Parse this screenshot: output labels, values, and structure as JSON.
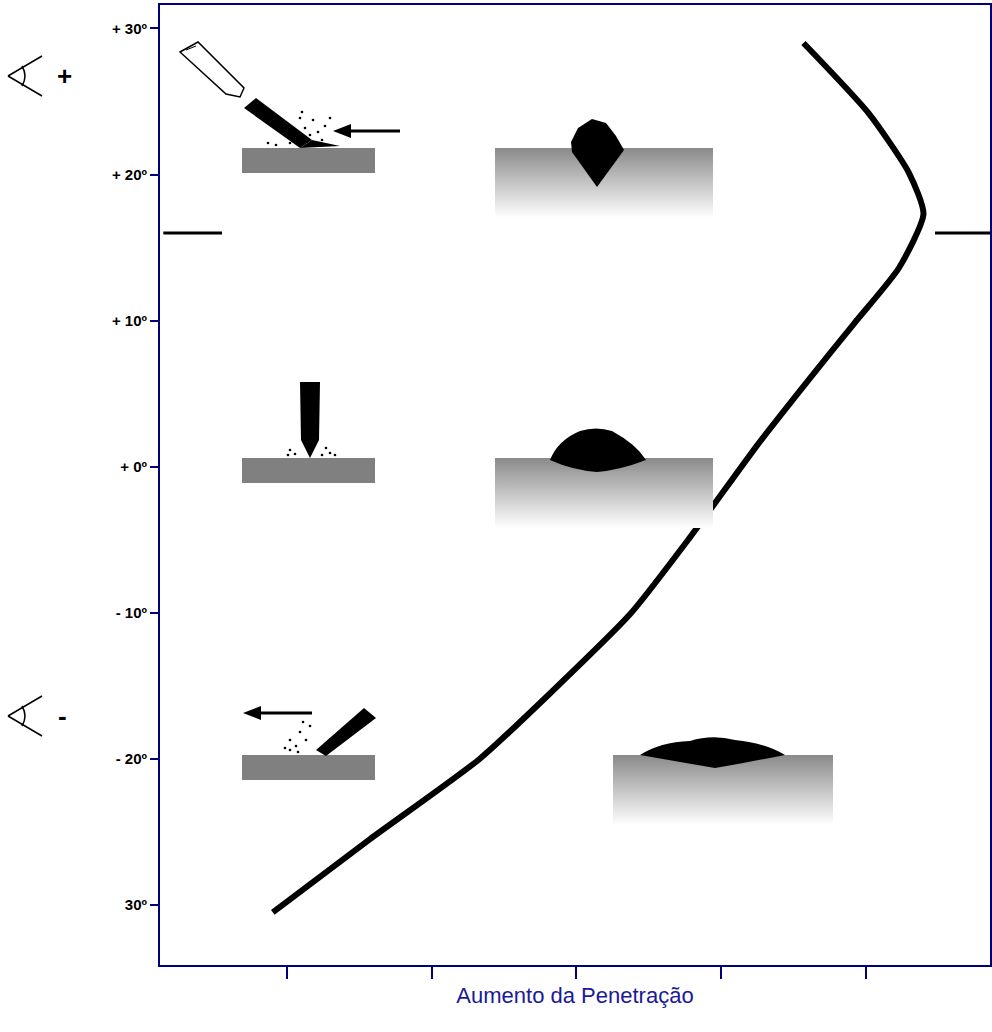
{
  "chart_data": {
    "type": "line",
    "x_label": "Aumento da Penetração",
    "x": [
      0.9,
      1.57,
      2.33,
      2.85,
      3.37,
      3.78,
      4.26,
      4.61,
      4.92,
      5.23,
      5.4,
      5.3,
      5.02,
      4.57
    ],
    "values": [
      -30.5,
      -25.5,
      -20.0,
      -15.2,
      -10.1,
      -4.9,
      1.6,
      6.0,
      9.8,
      13.6,
      17.3,
      20.1,
      24.2,
      29.0
    ],
    "color": "#000000",
    "xlim": [
      0.12,
      5.86
    ],
    "xticks": [
      1,
      2,
      3,
      4,
      5
    ],
    "ylim": [
      -34.1,
      31.6
    ],
    "yticks": [
      {
        "value": 30,
        "label": "+ 30º"
      },
      {
        "value": 20,
        "label": "+ 20º"
      },
      {
        "value": 10,
        "label": "+ 10º"
      },
      {
        "value": 0,
        "label": "+ 0º"
      },
      {
        "value": -10,
        "label": "- 10º"
      },
      {
        "value": -20,
        "label": "- 20º"
      },
      {
        "value": -30,
        "label": "30º"
      }
    ],
    "tick_labels": "y",
    "grid": false,
    "reference_y": 16,
    "annotations": [
      "+",
      "-"
    ]
  }
}
